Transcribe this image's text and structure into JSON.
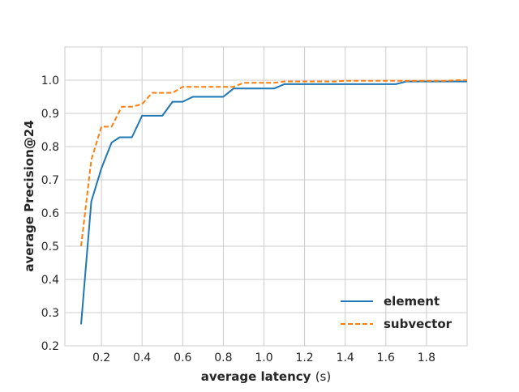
{
  "chart_data": {
    "type": "line",
    "title": "",
    "xlabel": "average latency",
    "xlabel_unit": "(s)",
    "ylabel": "average Precision@24",
    "xlim": [
      0.02,
      2.0
    ],
    "ylim": [
      0.2,
      1.1
    ],
    "xticks": [
      0.2,
      0.4,
      0.6,
      0.8,
      1.0,
      1.2,
      1.4,
      1.6,
      1.8
    ],
    "xtick_labels": [
      "0.2",
      "0.4",
      "0.6",
      "0.8",
      "1.0",
      "1.2",
      "1.4",
      "1.6",
      "1.8"
    ],
    "yticks": [
      0.2,
      0.3,
      0.4,
      0.5,
      0.6,
      0.7,
      0.8,
      0.9,
      1.0
    ],
    "ytick_labels": [
      "0.2",
      "0.3",
      "0.4",
      "0.5",
      "0.6",
      "0.7",
      "0.8",
      "0.9",
      "1.0"
    ],
    "grid": true,
    "legend_position": "lower-right",
    "series": [
      {
        "name": "element",
        "color": "#1f77b4",
        "linestyle": "solid",
        "points": [
          [
            0.1,
            0.265
          ],
          [
            0.15,
            0.635
          ],
          [
            0.2,
            0.735
          ],
          [
            0.25,
            0.812
          ],
          [
            0.29,
            0.828
          ],
          [
            0.35,
            0.828
          ],
          [
            0.4,
            0.893
          ],
          [
            0.5,
            0.893
          ],
          [
            0.55,
            0.935
          ],
          [
            0.6,
            0.935
          ],
          [
            0.65,
            0.95
          ],
          [
            0.8,
            0.95
          ],
          [
            0.85,
            0.975
          ],
          [
            1.05,
            0.975
          ],
          [
            1.1,
            0.988
          ],
          [
            1.65,
            0.988
          ],
          [
            1.7,
            0.996
          ],
          [
            2.0,
            0.996
          ]
        ]
      },
      {
        "name": "subvector",
        "color": "#ff7f0e",
        "linestyle": "dashed",
        "points": [
          [
            0.1,
            0.5
          ],
          [
            0.15,
            0.76
          ],
          [
            0.2,
            0.86
          ],
          [
            0.25,
            0.86
          ],
          [
            0.3,
            0.92
          ],
          [
            0.35,
            0.92
          ],
          [
            0.4,
            0.928
          ],
          [
            0.45,
            0.962
          ],
          [
            0.55,
            0.962
          ],
          [
            0.6,
            0.98
          ],
          [
            0.85,
            0.98
          ],
          [
            0.9,
            0.992
          ],
          [
            1.05,
            0.992
          ],
          [
            1.1,
            0.996
          ],
          [
            1.35,
            0.996
          ],
          [
            1.4,
            0.998
          ],
          [
            1.9,
            0.998
          ],
          [
            1.95,
            1.0
          ],
          [
            2.0,
            1.0
          ]
        ]
      }
    ]
  }
}
